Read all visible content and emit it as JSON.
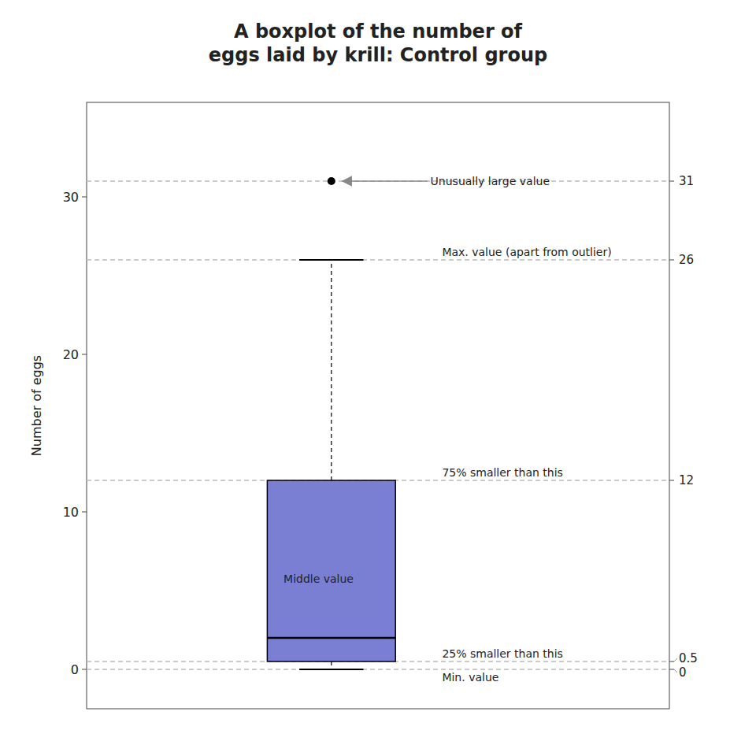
{
  "chart_data": {
    "type": "box",
    "title": "A boxplot of the number of\neggs laid by krill: Control group",
    "ylabel": "Number of eggs",
    "q1": 0.5,
    "median": 2,
    "q3": 12,
    "whisker_low": 0,
    "whisker_high": 26,
    "outlier": 31,
    "color": "#7B7FD4",
    "dashed_lines": [
      0,
      0.5,
      12,
      26,
      31
    ],
    "box_label": "Middle value",
    "annotations": [
      {
        "y": 31,
        "text": "Unusually large value",
        "arrow": true
      },
      {
        "y": 26,
        "text": "Max. value (apart from outlier)",
        "arrow": false
      },
      {
        "y": 12,
        "text": "75% smaller than this",
        "arrow": false
      },
      {
        "y": 0.5,
        "text": "25% smaller than this",
        "arrow": false
      },
      {
        "y": 0,
        "text": "Min. value",
        "arrow": false
      }
    ],
    "ylim": [
      -2.5,
      36
    ],
    "yticks": [
      0,
      10,
      20,
      30
    ],
    "y2lim": [
      -2.5,
      36
    ],
    "y2ticks": [
      31,
      26,
      12,
      0.5,
      0
    ],
    "tick_labels": "y"
  }
}
